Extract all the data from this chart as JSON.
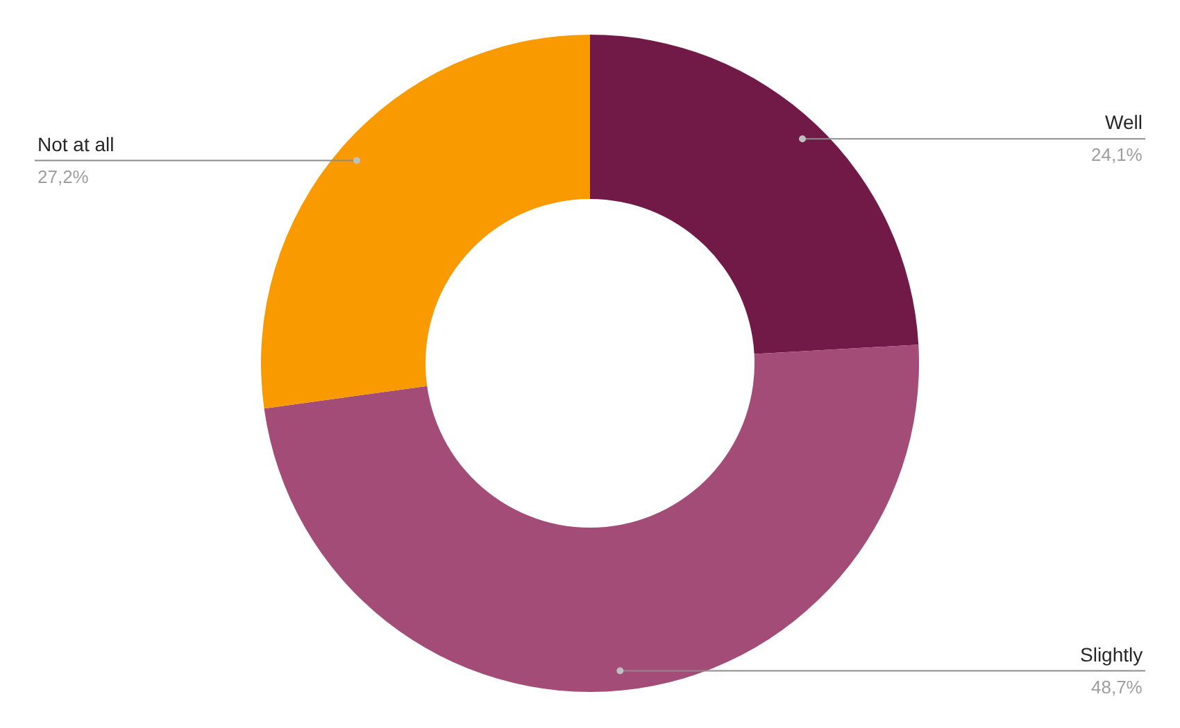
{
  "chart_data": {
    "type": "donut",
    "categories": [
      "Well",
      "Slightly",
      "Not at all"
    ],
    "values": [
      24.1,
      48.7,
      27.2
    ],
    "value_labels": [
      "24,1%",
      "48,7%",
      "27,2%"
    ],
    "colors": [
      "#721a47",
      "#a34c78",
      "#f99a00"
    ],
    "legend": false
  }
}
